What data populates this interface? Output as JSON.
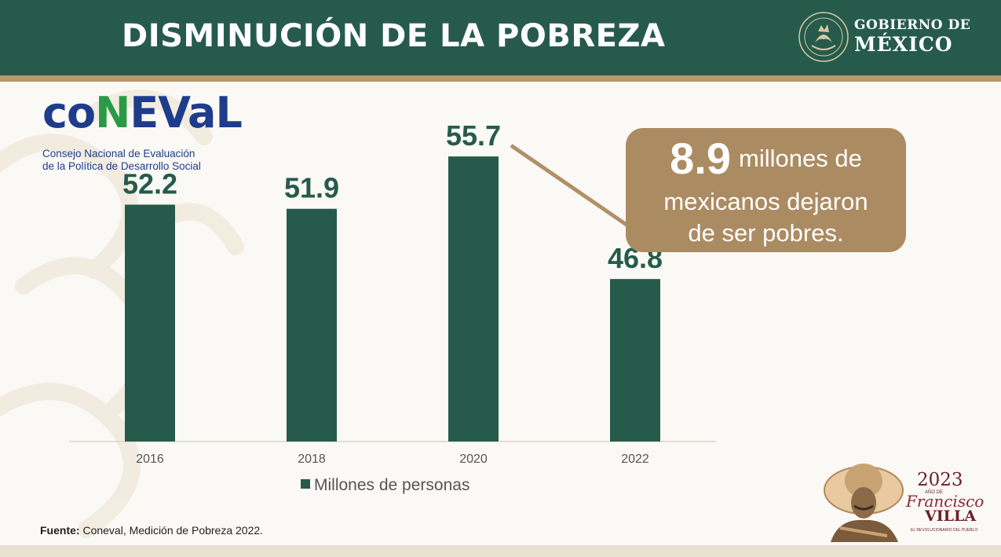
{
  "header": {
    "title": "DISMINUCIÓN DE LA POBREZA",
    "gov_line1": "GOBIERNO DE",
    "gov_line2": "MÉXICO",
    "seal_text": "ESTADOS UNIDOS MEXICANOS"
  },
  "coneval": {
    "logo_text_a": "co",
    "logo_text_n": "N",
    "logo_text_b": "EVaL",
    "subtitle_line1": "Consejo Nacional de Evaluación",
    "subtitle_line2": "de la Política de Desarrollo Social"
  },
  "chart_data": {
    "type": "bar",
    "categories": [
      "2016",
      "2018",
      "2020",
      "2022"
    ],
    "values": [
      52.2,
      51.9,
      55.7,
      46.8
    ],
    "value_labels": [
      "52.2",
      "51.9",
      "55.7",
      "46.8"
    ],
    "series": [
      {
        "name": "Millones de personas",
        "values": [
          52.2,
          51.9,
          55.7,
          46.8
        ]
      }
    ],
    "legend": "bottom-center",
    "grid": false,
    "annotation": "arrow from 2020 bar to 2022 bar",
    "colors": {
      "bar": "#265b4c",
      "label": "#265b4c",
      "arrow": "#b09068"
    }
  },
  "callout": {
    "number": "8.9",
    "text_line1": "millones de",
    "text_line2": "mexicanos dejaron",
    "text_line3": "de ser pobres."
  },
  "footer": {
    "label": "Fuente:",
    "text": " Coneval, Medición de Pobreza 2022."
  },
  "villa": {
    "year": "2023",
    "small": "AÑO DE",
    "name1": "Francisco",
    "name2": "VILLA",
    "tagline": "EL REVOLUCIONARIO DEL PUEBLO"
  },
  "colors": {
    "header": "#265b4c",
    "accent": "#b8996a",
    "callout": "#ab8b62",
    "coneval_blue": "#1e3c8c",
    "coneval_green": "#2b9a46"
  }
}
